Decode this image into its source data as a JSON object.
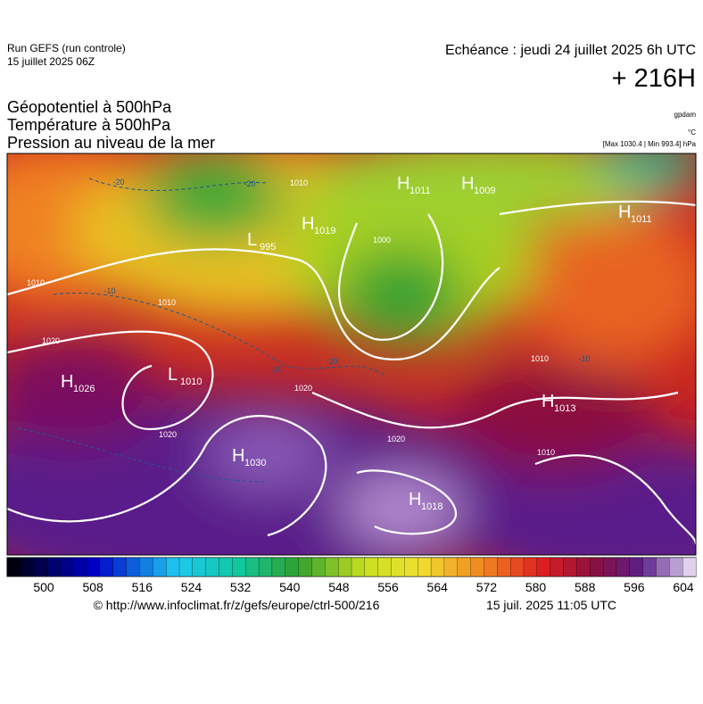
{
  "header": {
    "run": "Run GEFS (run controle)",
    "run_date": "15 juillet 2025 06Z",
    "valid_time": "Echéance : jeudi 24 juillet 2025 6h UTC",
    "lead_time": "+ 216H",
    "titles": [
      "Géopotentiel à 500hPa",
      "Température à 500hPa",
      "Pression au niveau de la mer"
    ],
    "units": [
      "gpdam",
      "°C",
      "[Max 1030.4 | Min 993.4] hPa"
    ]
  },
  "map": {
    "pressure_centers": [
      {
        "kind": "H",
        "value": 1011
      },
      {
        "kind": "H",
        "value": 1009
      },
      {
        "kind": "L",
        "value": 995
      },
      {
        "kind": "H",
        "value": 1019
      },
      {
        "kind": "H",
        "value": 1026
      },
      {
        "kind": "L",
        "value": 1010
      },
      {
        "kind": "H",
        "value": 1030
      },
      {
        "kind": "H",
        "value": 1018
      },
      {
        "kind": "H",
        "value": 1013
      },
      {
        "kind": "H",
        "value": 1011
      }
    ],
    "isobar_labels": [
      1010,
      1010,
      1020,
      1020,
      1020,
      1020,
      1000,
      1010,
      1010,
      1010
    ],
    "temperature_labels": [
      -20,
      -20,
      -10,
      -20,
      -10,
      -10
    ]
  },
  "colorbar": {
    "ticks": [
      500,
      508,
      516,
      524,
      532,
      540,
      548,
      556,
      564,
      572,
      580,
      588,
      596,
      604
    ]
  },
  "footer": {
    "source": "© http://www.infoclimat.fr/z/gefs/europe/ctrl-500/216",
    "generated": "15 juil. 2025 11:05 UTC"
  }
}
